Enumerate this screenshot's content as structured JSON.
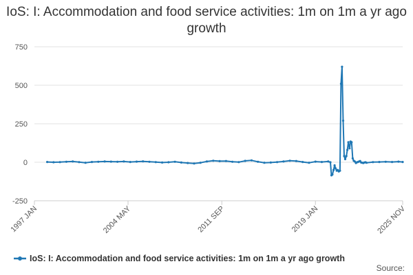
{
  "chart_data": {
    "type": "line",
    "title": "IoS: I: Accommodation and food service activities: 1m on 1m a yr ago growth",
    "xlabel": "",
    "ylabel": "",
    "x_range": [
      1997.5,
      2025.85
    ],
    "ylim": [
      -250,
      750
    ],
    "y_ticks": [
      -250,
      0,
      250,
      500,
      750
    ],
    "x_ticks": [
      {
        "label": "1997 JAN",
        "x": 1997.0
      },
      {
        "label": "2004 MAY",
        "x": 2004.33
      },
      {
        "label": "2011 SEP",
        "x": 2011.67
      },
      {
        "label": "2019 JAN",
        "x": 2019.0
      },
      {
        "label": "2025 NOV",
        "x": 2025.83
      }
    ],
    "grid": true,
    "legend": "bottom",
    "series": [
      {
        "name": "IoS: I: Accommodation and food service activities: 1m on 1m a yr ago growth",
        "color": "#1f77b4",
        "x": [
          1998.0,
          1998.5,
          1999.0,
          1999.5,
          2000.0,
          2000.5,
          2001.0,
          2001.5,
          2002.0,
          2002.5,
          2003.0,
          2003.5,
          2004.0,
          2004.5,
          2005.0,
          2005.5,
          2006.0,
          2006.5,
          2007.0,
          2007.5,
          2008.0,
          2008.5,
          2009.0,
          2009.5,
          2010.0,
          2010.5,
          2011.0,
          2011.5,
          2012.0,
          2012.5,
          2013.0,
          2013.5,
          2014.0,
          2014.5,
          2015.0,
          2015.5,
          2016.0,
          2016.5,
          2017.0,
          2017.5,
          2018.0,
          2018.5,
          2019.0,
          2019.5,
          2020.0,
          2020.17,
          2020.25,
          2020.33,
          2020.42,
          2020.5,
          2020.58,
          2020.67,
          2020.75,
          2020.83,
          2020.92,
          2021.0,
          2021.08,
          2021.17,
          2021.25,
          2021.33,
          2021.42,
          2021.5,
          2021.58,
          2021.67,
          2021.75,
          2021.83,
          2021.92,
          2022.0,
          2022.08,
          2022.17,
          2022.25,
          2022.33,
          2022.42,
          2022.5,
          2022.58,
          2022.67,
          2022.75,
          2022.83,
          2022.92,
          2023.0,
          2023.5,
          2024.0,
          2024.5,
          2025.0,
          2025.5,
          2025.83
        ],
        "values": [
          2,
          0,
          1,
          3,
          5,
          1,
          -3,
          2,
          3,
          5,
          4,
          3,
          5,
          2,
          4,
          6,
          3,
          1,
          -2,
          0,
          3,
          -2,
          -5,
          -8,
          -3,
          5,
          10,
          7,
          8,
          3,
          1,
          9,
          12,
          3,
          -3,
          -2,
          1,
          5,
          10,
          8,
          2,
          -3,
          4,
          2,
          5,
          0,
          -85,
          -80,
          -50,
          -20,
          -40,
          -55,
          -50,
          -60,
          -55,
          510,
          620,
          270,
          40,
          20,
          40,
          80,
          130,
          90,
          135,
          130,
          25,
          10,
          5,
          -5,
          0,
          2,
          5,
          8,
          -2,
          -3,
          -5,
          -2,
          0,
          -3,
          1,
          2,
          3,
          2,
          4,
          2
        ]
      }
    ],
    "source": "Source:"
  }
}
